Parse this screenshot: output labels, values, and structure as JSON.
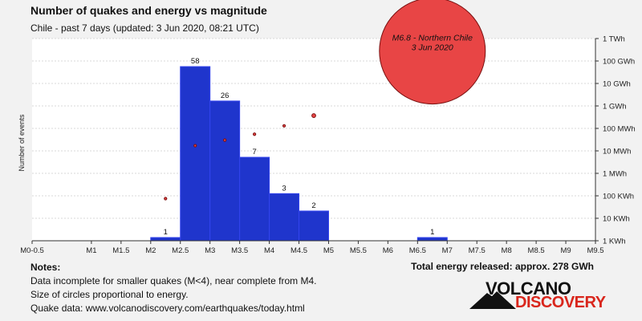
{
  "title": "Number of quakes and energy vs magnitude",
  "subtitle": "Chile - past 7 days (updated: 3 Jun 2020, 08:21 UTC)",
  "notes": {
    "heading": "Notes:",
    "lines": [
      "Data incomplete for smaller quakes (M<4), near complete from M4.",
      "Size of circles proportional to energy.",
      "Quake data: www.volcanodiscovery.com/earthquakes/today.html"
    ]
  },
  "total_energy": "Total energy released: approx. 278 GWh",
  "logo": {
    "word1": "VOLCANO",
    "word2": "DISCOVERY"
  },
  "colors": {
    "bar_fill": "#1f35cc",
    "bar_stroke": "#3344ee",
    "circle_fill": "#e84545",
    "circle_stroke": "#7a1010",
    "logo_red": "#d9261c"
  },
  "chart_data": {
    "type": "bar",
    "ylabel": "Number of events",
    "x_ticks": [
      "M0-0.5",
      "M1",
      "M1.5",
      "M2",
      "M2.5",
      "M3",
      "M3.5",
      "M4",
      "M4.5",
      "M5",
      "M5.5",
      "M6",
      "M6.5",
      "M7",
      "M7.5",
      "M8",
      "M8.5",
      "M9",
      "M9.5"
    ],
    "bars": [
      {
        "from": 2.0,
        "to": 2.5,
        "count": 1,
        "label": "1"
      },
      {
        "from": 2.5,
        "to": 3.0,
        "count": 58,
        "label": "58"
      },
      {
        "from": 3.0,
        "to": 3.5,
        "count": 26,
        "label": "26"
      },
      {
        "from": 3.5,
        "to": 4.0,
        "count": 7,
        "label": "7"
      },
      {
        "from": 4.0,
        "to": 4.5,
        "count": 3,
        "label": "3"
      },
      {
        "from": 4.5,
        "to": 5.0,
        "count": 2,
        "label": "2"
      },
      {
        "from": 6.5,
        "to": 7.0,
        "count": 1,
        "label": "1"
      }
    ],
    "count_axis": {
      "scale": "log",
      "max": 58
    },
    "energy_axis": {
      "scale": "log",
      "ticks": [
        "1 KWh",
        "10 KWh",
        "100 KWh",
        "1 MWh",
        "10 MWh",
        "100 MWh",
        "1 GWh",
        "10 GWh",
        "100 GWh",
        "1 TWh"
      ]
    },
    "energy_points": [
      {
        "magnitude": 2.25,
        "energy_kwh": 75
      },
      {
        "magnitude": 2.75,
        "energy_kwh": 17000
      },
      {
        "magnitude": 3.25,
        "energy_kwh": 30000
      },
      {
        "magnitude": 3.75,
        "energy_kwh": 55000
      },
      {
        "magnitude": 4.25,
        "energy_kwh": 130000
      },
      {
        "magnitude": 4.75,
        "energy_kwh": 370000
      },
      {
        "magnitude": 6.75,
        "energy_kwh": 278000000
      }
    ],
    "annotation": {
      "magnitude": 6.75,
      "lines": [
        "M6.8 - Northern Chile",
        "3 Jun 2020"
      ]
    }
  }
}
